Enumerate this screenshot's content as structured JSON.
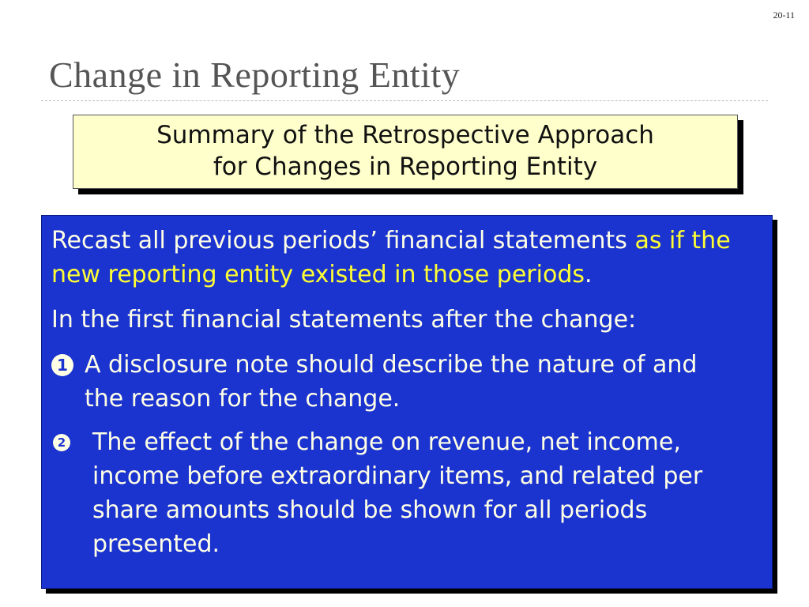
{
  "page_number": "20-11",
  "title": "Change in Reporting Entity",
  "summary_box": {
    "line1": "Summary of the Retrospective  Approach",
    "line2": "for Changes in Reporting Entity"
  },
  "content": {
    "para1_normal": "Recast all previous periods’ financial statements ",
    "para1_highlight": "as if the new reporting entity existed in those periods",
    "para1_end": ".",
    "para2": "In the first financial statements after the change:",
    "items": [
      {
        "number": "1",
        "text": "A disclosure note should describe the nature of and the reason for the change."
      },
      {
        "number": "2",
        "text": "The effect of the change on revenue, net income, income before extraordinary items, and related per share amounts should be shown for all periods presented."
      }
    ]
  },
  "colors": {
    "box_blue": "#1b34cf",
    "highlight": "#ffff33",
    "summary_bg": "#ffffcc"
  }
}
